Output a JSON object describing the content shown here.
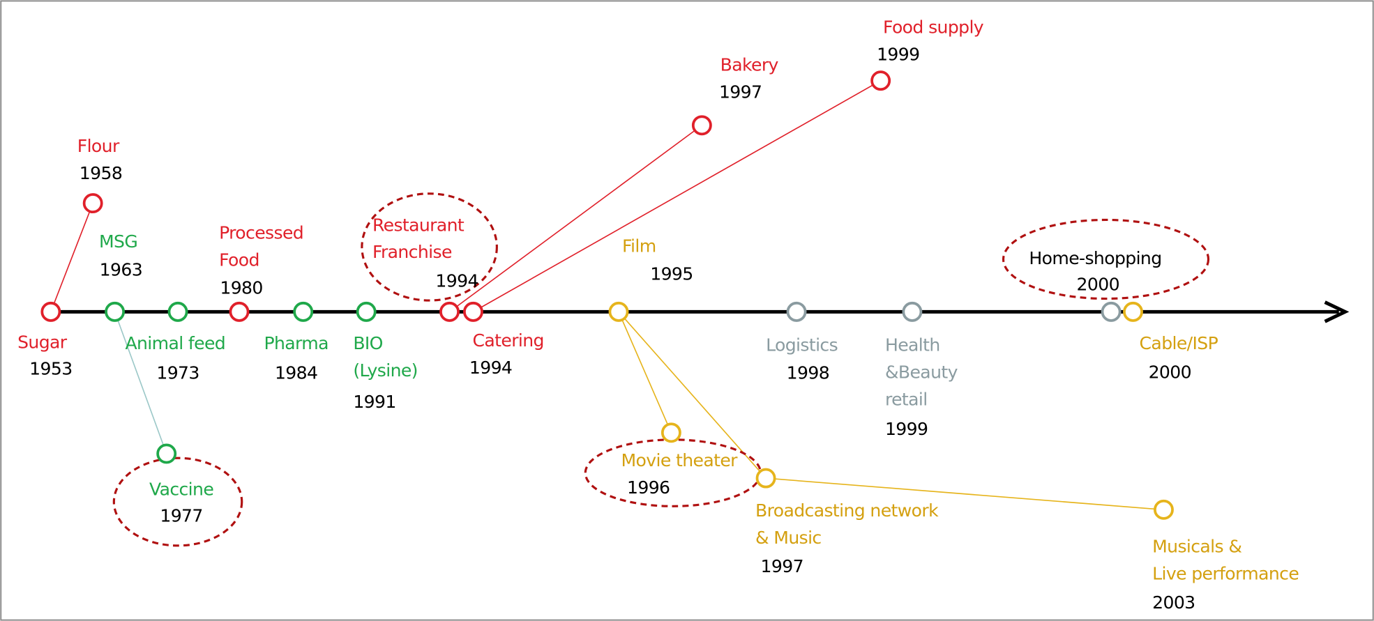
{
  "nodes": [
    {
      "label": [
        "Sugar"
      ],
      "year": "1953",
      "color": "#e0202a"
    },
    {
      "label": [
        "Flour"
      ],
      "year": "1958",
      "color": "#e0202a"
    },
    {
      "label": [
        "MSG"
      ],
      "year": "1963",
      "color": "#1fa84a"
    },
    {
      "label": [
        "Animal feed"
      ],
      "year": "1973",
      "color": "#1fa84a"
    },
    {
      "label": [
        "Vaccine"
      ],
      "year": "1977",
      "color": "#1fa84a"
    },
    {
      "label": [
        "Processed",
        "Food"
      ],
      "year": "1980",
      "color": "#e0202a"
    },
    {
      "label": [
        "Pharma"
      ],
      "year": "1984",
      "color": "#1fa84a"
    },
    {
      "label": [
        "BIO",
        "(Lysine)"
      ],
      "year": "1991",
      "color": "#1fa84a"
    },
    {
      "label": [
        "Restaurant",
        "Franchise"
      ],
      "year": "1994",
      "color": "#e0202a"
    },
    {
      "label": [
        "Catering"
      ],
      "year": "1994",
      "color": "#e0202a"
    },
    {
      "label": [
        "Bakery"
      ],
      "year": "1997",
      "color": "#e0202a"
    },
    {
      "label": [
        "Food supply"
      ],
      "year": "1999",
      "color": "#e0202a"
    },
    {
      "label": [
        "Film"
      ],
      "year": "1995",
      "color": "#e6b41c"
    },
    {
      "label": [
        "Movie theater"
      ],
      "year": "1996",
      "color": "#e6b41c"
    },
    {
      "label": [
        "Broadcasting network",
        "& Music"
      ],
      "year": "1997",
      "color": "#e6b41c"
    },
    {
      "label": [
        "Musicals &",
        "Live performance"
      ],
      "year": "2003",
      "color": "#e6b41c"
    },
    {
      "label": [
        "Logistics"
      ],
      "year": "1998",
      "color": "#8a9ba0"
    },
    {
      "label": [
        "Health",
        "&Beauty",
        "retail"
      ],
      "year": "1999",
      "color": "#8a9ba0"
    },
    {
      "label": [
        "Home-shopping"
      ],
      "year": "2000",
      "color": "#8a9ba0"
    },
    {
      "label": [
        "Cable/ISP"
      ],
      "year": "2000",
      "color": "#e6b41c"
    }
  ]
}
